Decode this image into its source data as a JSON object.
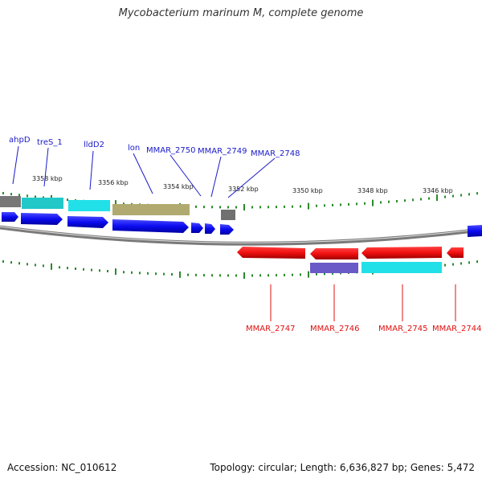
{
  "header": {
    "title": "Mycobacterium marinum M, complete genome"
  },
  "footer": {
    "accession": "Accession: NC_010612",
    "topology": "Topology: circular; Length: 6,636,827 bp; Genes: 5,472"
  },
  "colors": {
    "forward_label": "#1a1ac8",
    "reverse_label": "#e01010",
    "cds_forward": "#0b0bf0",
    "cds_reverse": "#f01010",
    "tick": "#2a8a2a",
    "backbone": "#8a8a8a"
  },
  "scale_labels": [
    "3358 kbp",
    "3356 kbp",
    "3354 kbp",
    "3352 kbp",
    "3350 kbp",
    "3348 kbp",
    "3346 kbp"
  ],
  "forward_genes": [
    {
      "name": "ahpD",
      "feature_color": "#777777"
    },
    {
      "name": "treS_1",
      "feature_color": "#22c8c8"
    },
    {
      "name": "lldD2",
      "feature_color": "#22e0e8"
    },
    {
      "name": "lon",
      "feature_color": "#b0aa70"
    },
    {
      "name": "MMAR_2750",
      "feature_color": ""
    },
    {
      "name": "MMAR_2749",
      "feature_color": ""
    },
    {
      "name": "MMAR_2748",
      "feature_color": "#707070"
    }
  ],
  "reverse_genes": [
    {
      "name": "MMAR_2747",
      "feature_color": ""
    },
    {
      "name": "MMAR_2746",
      "feature_color": "#6a5ac8"
    },
    {
      "name": "MMAR_2745",
      "feature_color": "#22e0e8"
    },
    {
      "name": "MMAR_2744",
      "feature_color": ""
    }
  ]
}
